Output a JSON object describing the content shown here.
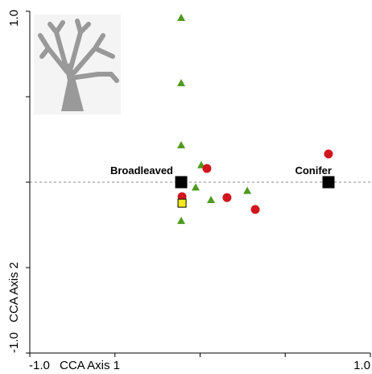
{
  "chart_data": {
    "type": "scatter",
    "x_label": "CCA Axis 1",
    "y_label": "CCA Axis 2",
    "xlim": [
      -1,
      1
    ],
    "ylim": [
      -1,
      1
    ],
    "xticks": [
      {
        "value": -1,
        "label": "-1.0"
      },
      -0.5,
      0,
      0.5,
      {
        "value": 1,
        "label": "1.0"
      }
    ],
    "yticks": [
      {
        "value": -1,
        "label": "-1.0"
      },
      -0.5,
      0,
      0.5,
      {
        "value": 1,
        "label": "1.0"
      }
    ],
    "series": [
      {
        "marker": "triangle",
        "color": "#4e9a1e",
        "x": [
          -0.111,
          -0.111,
          -0.111,
          0.007,
          -0.026,
          0.064,
          0.277,
          -0.111
        ],
        "values": [
          0.962,
          0.58,
          0.217,
          0.1,
          -0.03,
          -0.104,
          -0.05,
          -0.226
        ]
      },
      {
        "marker": "circle",
        "color": "#d0151e",
        "x": [
          0.04,
          -0.106,
          0.158,
          0.324,
          0.754
        ],
        "values": [
          0.08,
          -0.085,
          -0.09,
          -0.16,
          0.165
        ]
      },
      {
        "marker": "square",
        "color": "#f2ea1c",
        "x": [
          -0.106
        ],
        "values": [
          -0.123
        ]
      },
      {
        "marker": "square",
        "color": "#000000",
        "x": [
          -0.111,
          0.754
        ],
        "values": [
          0,
          0
        ],
        "labels": [
          "Broadleaved",
          "Conifer"
        ]
      }
    ]
  }
}
